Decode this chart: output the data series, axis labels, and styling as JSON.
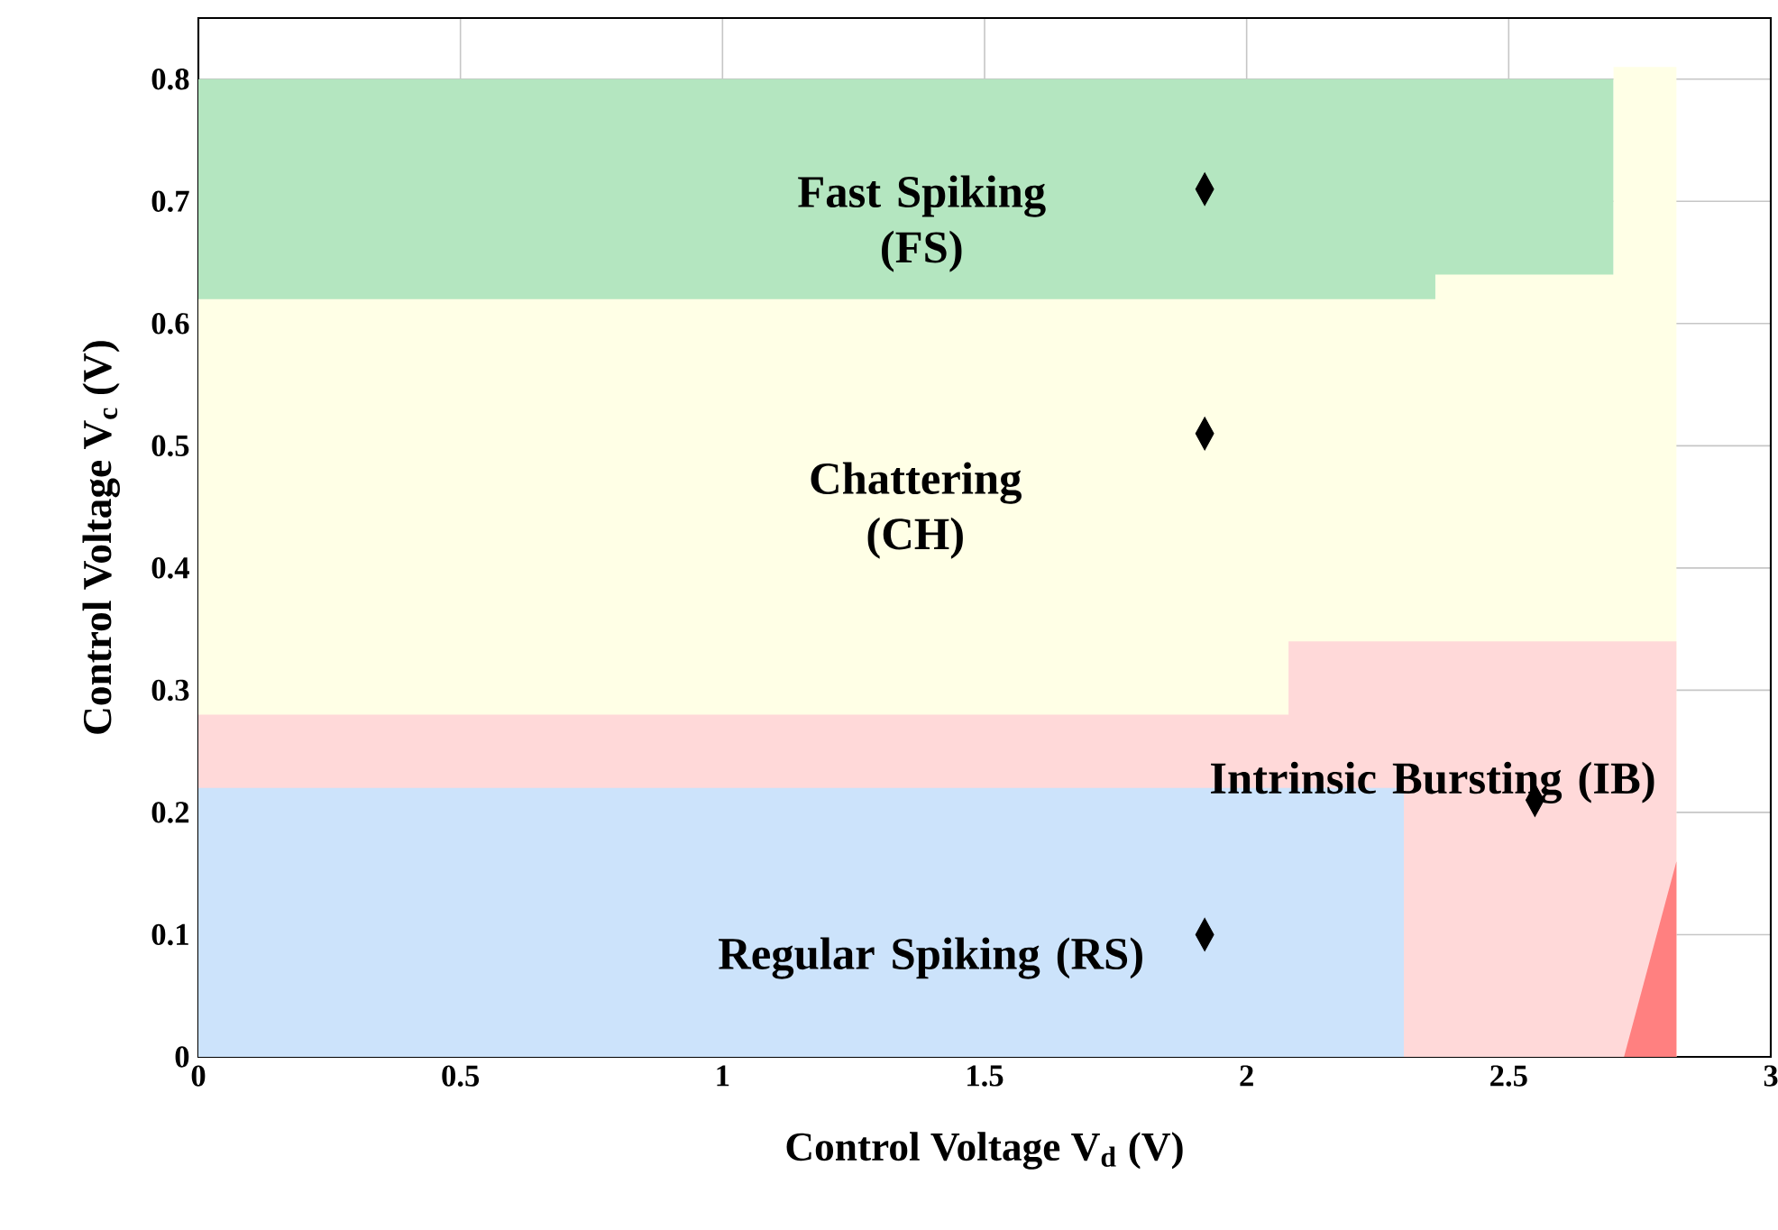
{
  "chart_data": {
    "type": "scatter",
    "xlabel": "Control Voltage  V$_{d}$ (V)",
    "ylabel": "Control Voltage  V$_{c}$ (V)",
    "xlim": [
      0,
      3
    ],
    "ylim": [
      0,
      0.85
    ],
    "xticks": [
      0,
      0.5,
      1,
      1.5,
      2,
      2.5,
      3
    ],
    "yticks": [
      0,
      0.1,
      0.2,
      0.3,
      0.4,
      0.5,
      0.6,
      0.7,
      0.8
    ],
    "grid": true,
    "annotations": [
      "Fast Spiking (FS)",
      "Chattering (CH)",
      "Intrinsic Bursting (IB)",
      "Regular Spiking (RS)"
    ],
    "series": [
      {
        "type": "area",
        "color": "#b4e6c0",
        "x": [
          0,
          2.7
        ],
        "values": [
          0.8,
          0.8
        ]
      },
      {
        "type": "area",
        "color": "#ffffe6",
        "x": [
          0,
          2.36,
          2.36,
          2.7,
          2.7,
          2.82
        ],
        "values": [
          0.62,
          0.62,
          0.64,
          0.64,
          0.81,
          0.81
        ]
      },
      {
        "type": "area",
        "color": "#ffd9d9",
        "x": [
          0,
          2.08,
          2.08,
          2.82
        ],
        "values": [
          0.28,
          0.28,
          0.34,
          0.34
        ]
      },
      {
        "type": "area",
        "color": "#cce3fb",
        "x": [
          0,
          2.3
        ],
        "values": [
          0.22,
          0.22
        ]
      },
      {
        "type": "area",
        "color": "#ff8080",
        "x": [
          2.72,
          2.82
        ],
        "values": [
          0,
          0.16
        ]
      },
      {
        "color": "#000000",
        "marker": "diamond",
        "x": [
          1.92,
          1.92,
          1.92,
          2.55
        ],
        "values": [
          0.71,
          0.51,
          0.1,
          0.21
        ]
      }
    ]
  }
}
